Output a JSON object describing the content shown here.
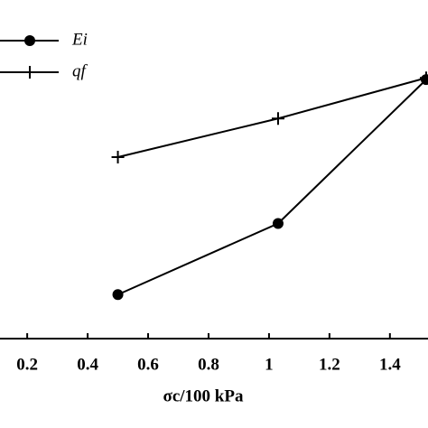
{
  "chart_data": {
    "type": "line",
    "x_label": "σc/100 kPa",
    "xlim": [
      0.11,
      1.526
    ],
    "ylim": [
      0,
      100
    ],
    "xticks": [
      0.2,
      0.4,
      0.6,
      0.8,
      1.0,
      1.2,
      1.4
    ],
    "legend": "upper left",
    "series": [
      {
        "name": "Ei",
        "color": "#000000",
        "marker": "circle",
        "x": [
          0.5,
          1.03,
          1.52
        ],
        "values": [
          13,
          34,
          76.5
        ]
      },
      {
        "name": "qf",
        "color": "#000000",
        "marker": "plus",
        "x": [
          0.5,
          1.03,
          1.52
        ],
        "values": [
          53.6,
          65,
          77
        ]
      }
    ]
  }
}
